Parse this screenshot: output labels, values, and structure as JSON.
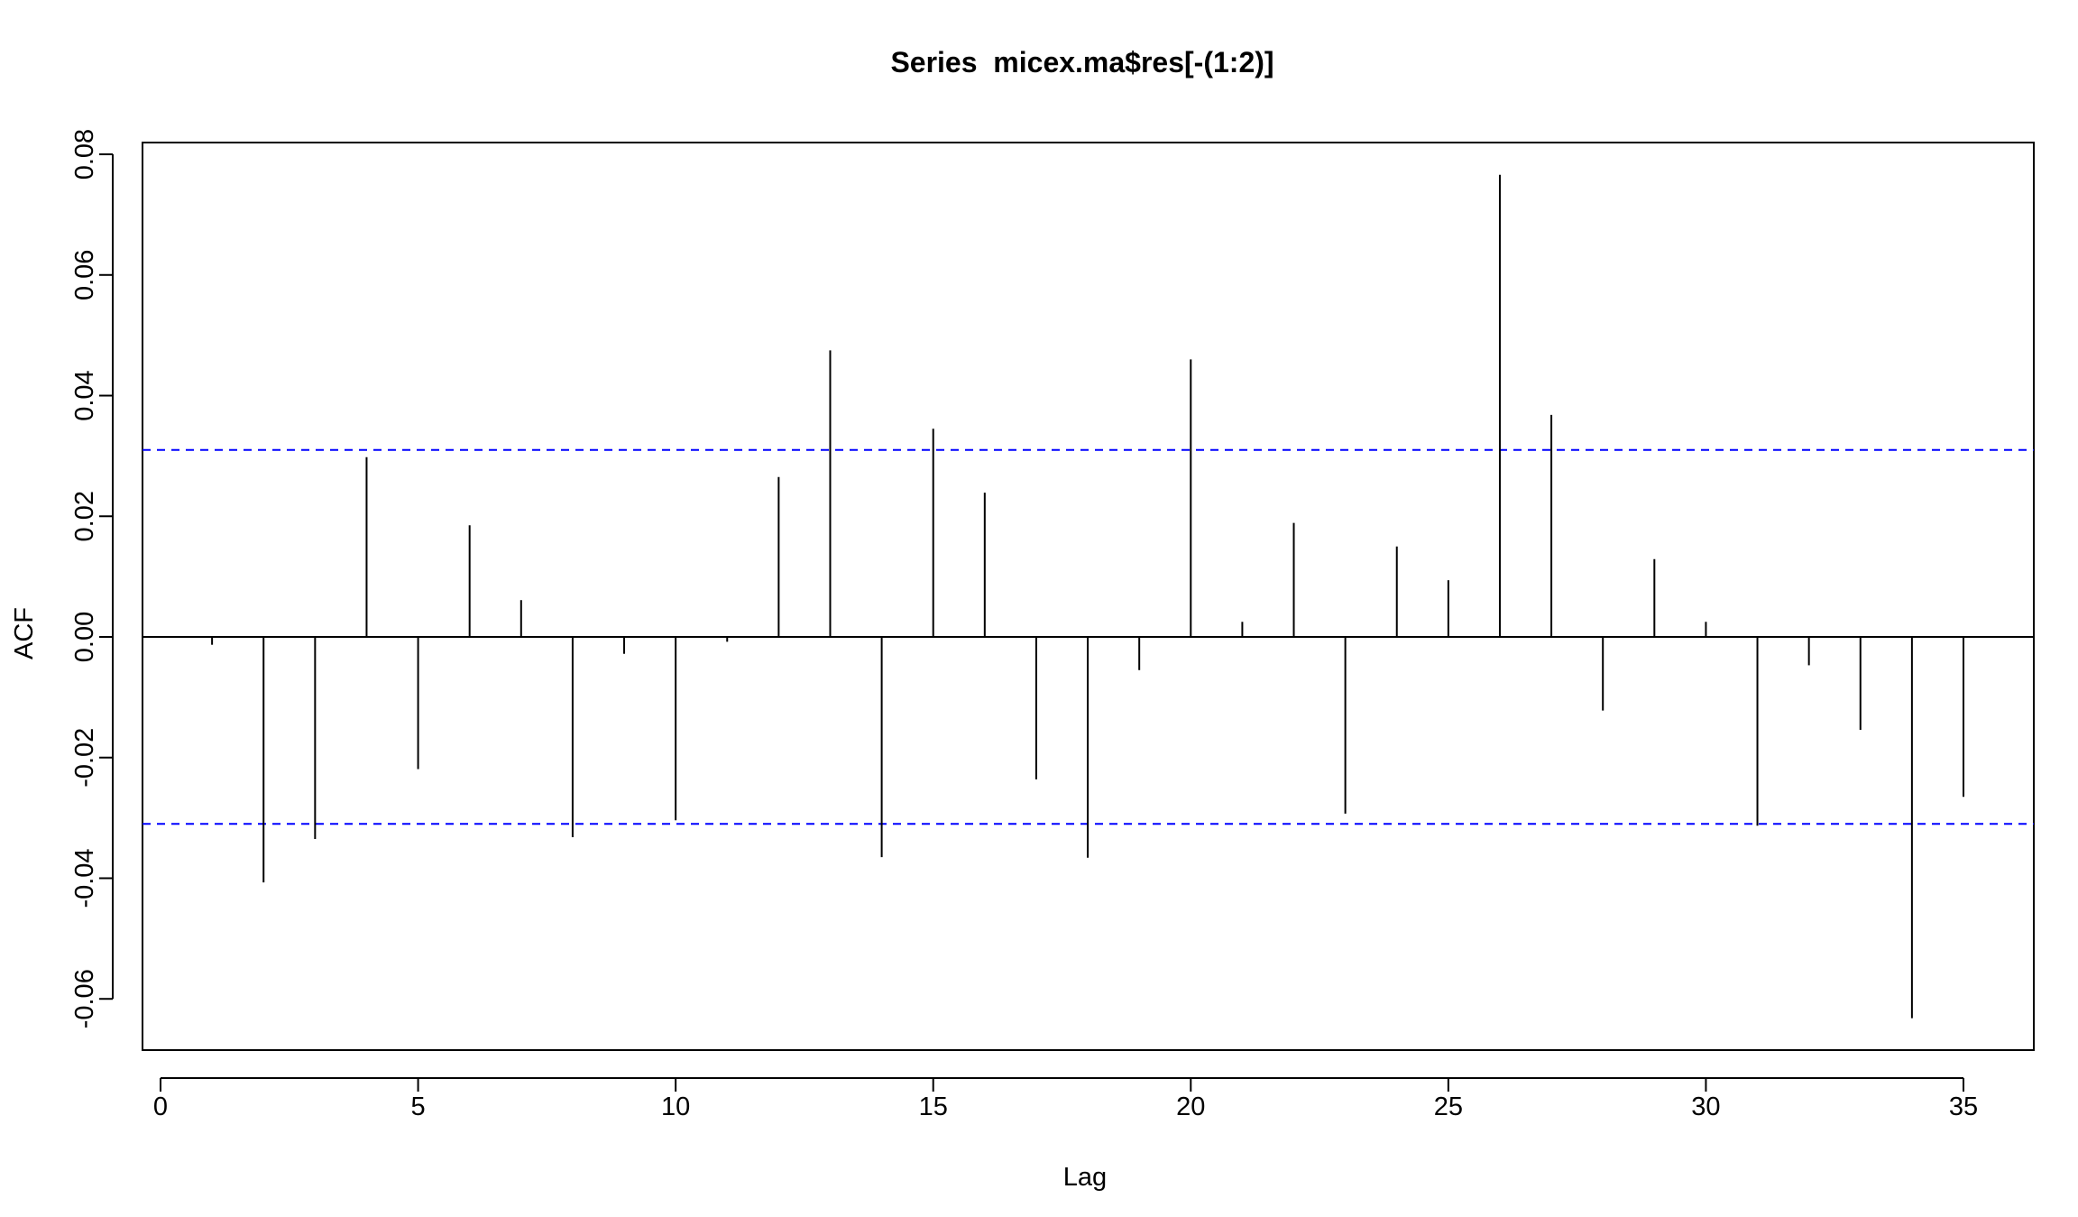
{
  "chart_data": {
    "type": "bar",
    "subtype": "acf",
    "title": "Series  micex.ma$res[-(1:2)]",
    "xlabel": "Lag",
    "ylabel": "ACF",
    "xlim": [
      0,
      35
    ],
    "ylim": [
      -0.069,
      0.082
    ],
    "x_ticks": [
      0,
      5,
      10,
      15,
      20,
      25,
      30,
      35
    ],
    "x_tick_labels": [
      "0",
      "5",
      "10",
      "15",
      "20",
      "25",
      "30",
      "35"
    ],
    "y_ticks": [
      -0.06,
      -0.04,
      -0.02,
      0.0,
      0.02,
      0.04,
      0.06,
      0.08
    ],
    "y_tick_labels": [
      "-0.06",
      "-0.04",
      "-0.02",
      "0.00",
      "0.02",
      "0.04",
      "0.06",
      "0.08"
    ],
    "lags": [
      1,
      2,
      3,
      4,
      5,
      6,
      7,
      8,
      9,
      10,
      11,
      12,
      13,
      14,
      15,
      16,
      17,
      18,
      19,
      20,
      21,
      22,
      23,
      24,
      25,
      26,
      27,
      28,
      29,
      30,
      31,
      32,
      33,
      34,
      35
    ],
    "values": [
      -0.0013,
      -0.0407,
      -0.0335,
      0.0298,
      -0.0219,
      0.0185,
      0.0061,
      -0.0332,
      -0.0028,
      -0.0304,
      -0.0008,
      0.0265,
      0.0475,
      -0.0365,
      0.0345,
      0.0239,
      -0.0236,
      -0.0366,
      -0.0055,
      0.046,
      0.0025,
      0.0189,
      -0.0293,
      0.015,
      0.0094,
      0.0766,
      0.0368,
      -0.0122,
      0.0129,
      0.0025,
      -0.0313,
      -0.0047,
      -0.0154,
      -0.0632,
      -0.0265
    ],
    "confidence_bounds": [
      -0.031,
      0.031
    ],
    "zero_line": 0,
    "grid": false,
    "colors": {
      "spike": "#000000",
      "confidence": "#0000ff",
      "axis": "#000000"
    }
  }
}
